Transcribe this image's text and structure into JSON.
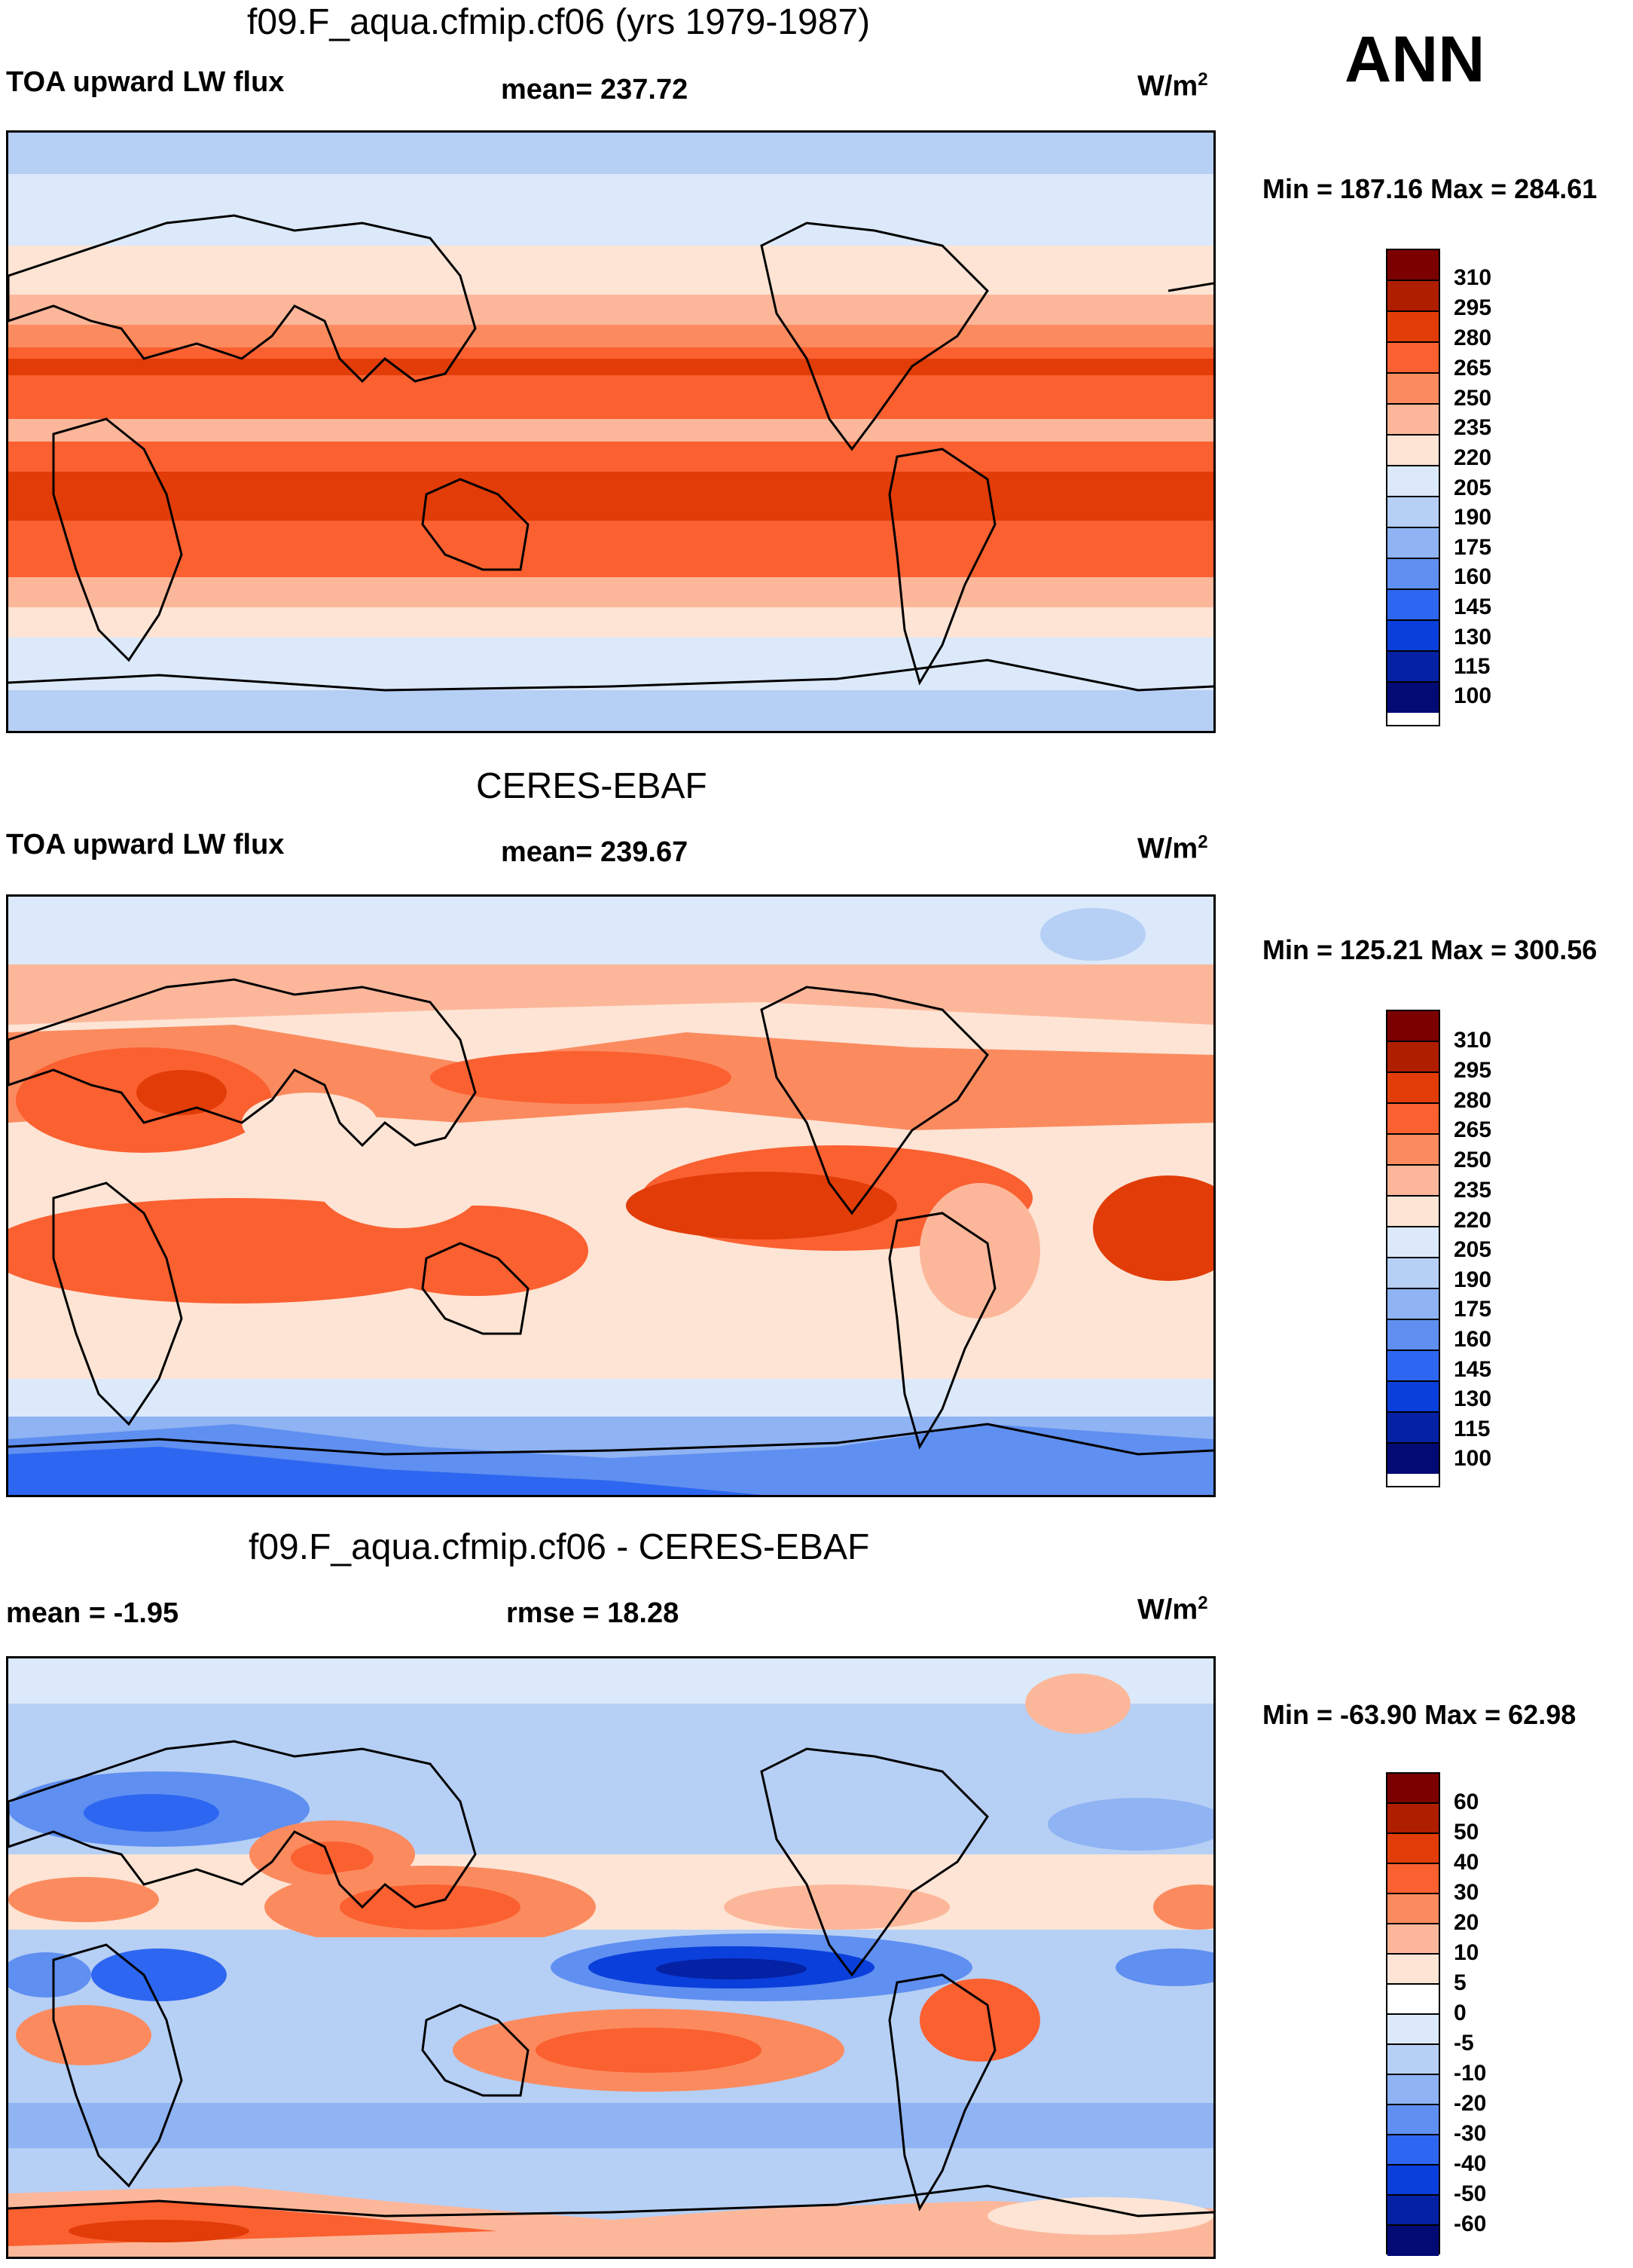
{
  "header": {
    "season": "ANN"
  },
  "panels": [
    {
      "title": "f09.F_aqua.cfmip.cf06 (yrs 1979-1987)",
      "left_label": "TOA upward LW flux",
      "center_label": "mean= 237.72",
      "units": "W/m",
      "units_exp": "2",
      "minmax": "Min = 187.16 Max = 284.61",
      "colorbar": {
        "colors": [
          "#7b0000",
          "#b01e00",
          "#e23c08",
          "#fb6031",
          "#fb8b5f",
          "#fcb79a",
          "#fde4d5",
          "#dbe9fa",
          "#b6cff5",
          "#8fb3f3",
          "#5f8ff0",
          "#2d66f0",
          "#0b3fdb",
          "#0521a4",
          "#030a74"
        ],
        "labels": [
          "310",
          "295",
          "280",
          "265",
          "250",
          "235",
          "220",
          "205",
          "190",
          "175",
          "160",
          "145",
          "130",
          "115",
          "100"
        ]
      }
    },
    {
      "title": "CERES-EBAF",
      "left_label": "TOA upward LW flux",
      "center_label": "mean= 239.67",
      "units": "W/m",
      "units_exp": "2",
      "minmax": "Min = 125.21 Max = 300.56",
      "colorbar": {
        "colors": [
          "#7b0000",
          "#b01e00",
          "#e23c08",
          "#fb6031",
          "#fb8b5f",
          "#fcb79a",
          "#fde4d5",
          "#dbe9fa",
          "#b6cff5",
          "#8fb3f3",
          "#5f8ff0",
          "#2d66f0",
          "#0b3fdb",
          "#0521a4",
          "#030a74"
        ],
        "labels": [
          "310",
          "295",
          "280",
          "265",
          "250",
          "235",
          "220",
          "205",
          "190",
          "175",
          "160",
          "145",
          "130",
          "115",
          "100"
        ]
      }
    },
    {
      "title": "f09.F_aqua.cfmip.cf06 - CERES-EBAF",
      "left_label": "mean =  -1.95",
      "center_label": "rmse =  18.28",
      "units": "W/m",
      "units_exp": "2",
      "minmax": "Min = -63.90 Max =  62.98",
      "colorbar": {
        "colors": [
          "#7b0000",
          "#b01e00",
          "#e23c08",
          "#fb6031",
          "#fb8b5f",
          "#fcb79a",
          "#fde4d5",
          "#ffffff",
          "#dbe9fa",
          "#b6cff5",
          "#8fb3f3",
          "#5f8ff0",
          "#2d66f0",
          "#0b3fdb",
          "#0521a4",
          "#030a74"
        ],
        "labels": [
          "60",
          "50",
          "40",
          "30",
          "20",
          "10",
          "5",
          "0",
          "-5",
          "-10",
          "-20",
          "-30",
          "-40",
          "-50",
          "-60"
        ]
      }
    }
  ]
}
